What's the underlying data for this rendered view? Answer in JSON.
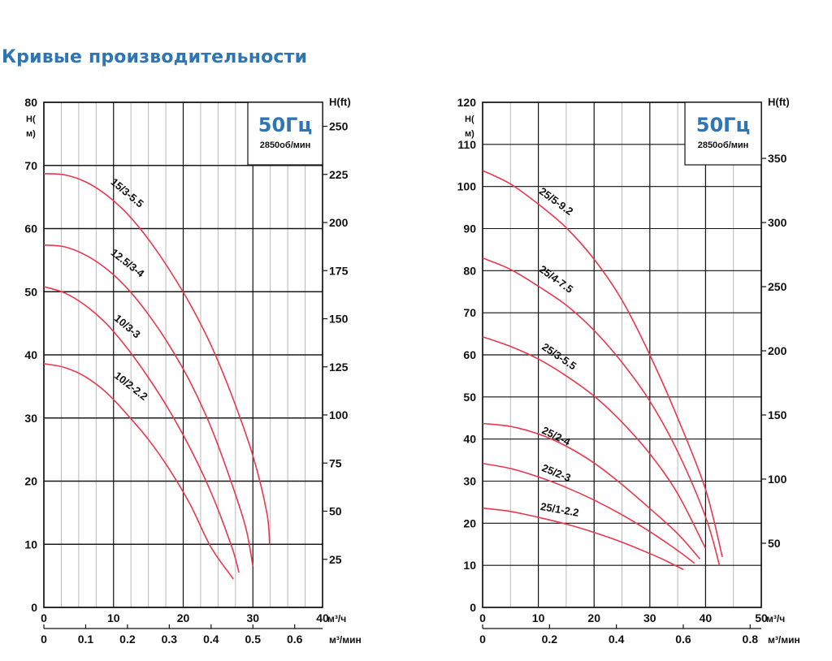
{
  "page": {
    "title": "Кривые производительности"
  },
  "colors": {
    "title": "#2e75b6",
    "curve": "#e8384f",
    "grid": "#b9b9b9",
    "grid_major": "#111111"
  },
  "chart_data": [
    {
      "type": "line",
      "frequency_label": "50Гц",
      "speed_label": "2850об/мин",
      "ylabel_left": "H(м)",
      "ylabel_right": "H(ft)",
      "xlabel_main": "м³/ч",
      "xlabel_secondary": "м³/мин",
      "xlim": [
        0,
        40
      ],
      "ylim": [
        0,
        80
      ],
      "x_ticks": [
        0,
        10,
        20,
        30,
        40
      ],
      "y_ticks": [
        0,
        10,
        20,
        30,
        40,
        50,
        60,
        70,
        80
      ],
      "secondary_x_ticks": [
        0,
        0.1,
        0.2,
        0.3,
        0.4,
        0.5,
        0.6
      ],
      "secondary_y_ticks": [
        25,
        50,
        75,
        100,
        125,
        150,
        175,
        200,
        225,
        250
      ],
      "grid": true,
      "series": [
        {
          "name": "15/3-5.5",
          "points": [
            [
              0,
              68.7
            ],
            [
              3,
              68.5
            ],
            [
              6,
              67.4
            ],
            [
              9,
              65.3
            ],
            [
              12,
              62.3
            ],
            [
              15,
              58.3
            ],
            [
              18,
              53.5
            ],
            [
              21,
              48
            ],
            [
              24,
              41.5
            ],
            [
              27,
              33.5
            ],
            [
              30,
              24
            ],
            [
              32,
              15
            ],
            [
              32.4,
              10
            ]
          ]
        },
        {
          "name": "12.5/3-4",
          "points": [
            [
              0,
              57.4
            ],
            [
              3,
              57.1
            ],
            [
              6,
              55.8
            ],
            [
              9,
              53.6
            ],
            [
              12,
              50.5
            ],
            [
              15,
              46.4
            ],
            [
              18,
              41.5
            ],
            [
              21,
              35.7
            ],
            [
              24,
              28.5
            ],
            [
              27,
              19.5
            ],
            [
              29,
              12.5
            ],
            [
              30,
              6.5
            ]
          ]
        },
        {
          "name": "10/3-3",
          "points": [
            [
              0,
              50.8
            ],
            [
              3,
              49.8
            ],
            [
              6,
              47.8
            ],
            [
              9,
              44.9
            ],
            [
              12,
              41
            ],
            [
              15,
              36.4
            ],
            [
              18,
              31.2
            ],
            [
              21,
              25.2
            ],
            [
              24,
              18.2
            ],
            [
              27,
              9.5
            ],
            [
              28,
              5.5
            ]
          ]
        },
        {
          "name": "10/2-2.2",
          "points": [
            [
              0,
              38.6
            ],
            [
              3,
              38
            ],
            [
              6,
              36.5
            ],
            [
              9,
              34
            ],
            [
              12,
              30.5
            ],
            [
              15,
              26.6
            ],
            [
              18,
              21.9
            ],
            [
              21,
              16.3
            ],
            [
              24,
              9.5
            ],
            [
              27.2,
              4.5
            ]
          ]
        }
      ]
    },
    {
      "type": "line",
      "frequency_label": "50Гц",
      "speed_label": "2850об/мин",
      "ylabel_left": "H(м)",
      "ylabel_right": "H(ft)",
      "xlabel_main": "м³/ч",
      "xlabel_secondary": "м³/мин",
      "xlim": [
        0,
        50
      ],
      "ylim": [
        0,
        120
      ],
      "x_ticks": [
        0,
        10,
        20,
        30,
        40,
        50
      ],
      "y_ticks": [
        0,
        10,
        20,
        30,
        40,
        50,
        60,
        70,
        80,
        90,
        100,
        110,
        120
      ],
      "secondary_x_ticks": [
        0,
        0.2,
        0.4,
        0.6,
        0.8
      ],
      "secondary_y_ticks": [
        50,
        100,
        150,
        200,
        250,
        300,
        350
      ],
      "grid": true,
      "series": [
        {
          "name": "25/5-9.2",
          "points": [
            [
              0,
              103.8
            ],
            [
              5,
              100.6
            ],
            [
              10,
              95.8
            ],
            [
              15,
              90.2
            ],
            [
              20,
              82.7
            ],
            [
              25,
              73
            ],
            [
              30,
              60
            ],
            [
              35,
              45
            ],
            [
              40,
              28
            ],
            [
              43,
              12
            ]
          ]
        },
        {
          "name": "25/4-7.5",
          "points": [
            [
              0,
              83
            ],
            [
              5,
              80.3
            ],
            [
              10,
              76.3
            ],
            [
              15,
              71.8
            ],
            [
              20,
              65.8
            ],
            [
              25,
              58.2
            ],
            [
              30,
              49
            ],
            [
              35,
              37
            ],
            [
              40,
              21.5
            ],
            [
              42.5,
              10
            ]
          ]
        },
        {
          "name": "25/3-5.5",
          "points": [
            [
              0,
              64.3
            ],
            [
              5,
              62
            ],
            [
              10,
              59
            ],
            [
              15,
              55
            ],
            [
              20,
              50.2
            ],
            [
              25,
              44
            ],
            [
              30,
              36.5
            ],
            [
              35,
              27
            ],
            [
              40,
              14
            ]
          ]
        },
        {
          "name": "25/2-4",
          "points": [
            [
              0,
              43.7
            ],
            [
              5,
              43
            ],
            [
              10,
              41.2
            ],
            [
              15,
              38.3
            ],
            [
              20,
              34.3
            ],
            [
              25,
              29.2
            ],
            [
              30,
              23.5
            ],
            [
              35,
              17.5
            ],
            [
              39,
              11.5
            ]
          ]
        },
        {
          "name": "25/2-3",
          "points": [
            [
              0,
              34.2
            ],
            [
              5,
              33
            ],
            [
              10,
              31
            ],
            [
              15,
              28.5
            ],
            [
              20,
              25.5
            ],
            [
              25,
              22
            ],
            [
              30,
              18
            ],
            [
              35,
              13.5
            ],
            [
              38,
              10.5
            ]
          ]
        },
        {
          "name": "25/1-2.2",
          "points": [
            [
              0,
              23.6
            ],
            [
              5,
              22.8
            ],
            [
              10,
              21.4
            ],
            [
              15,
              19.8
            ],
            [
              20,
              17.8
            ],
            [
              25,
              15.5
            ],
            [
              30,
              12.8
            ],
            [
              33,
              11
            ],
            [
              36,
              9
            ]
          ]
        }
      ]
    }
  ]
}
